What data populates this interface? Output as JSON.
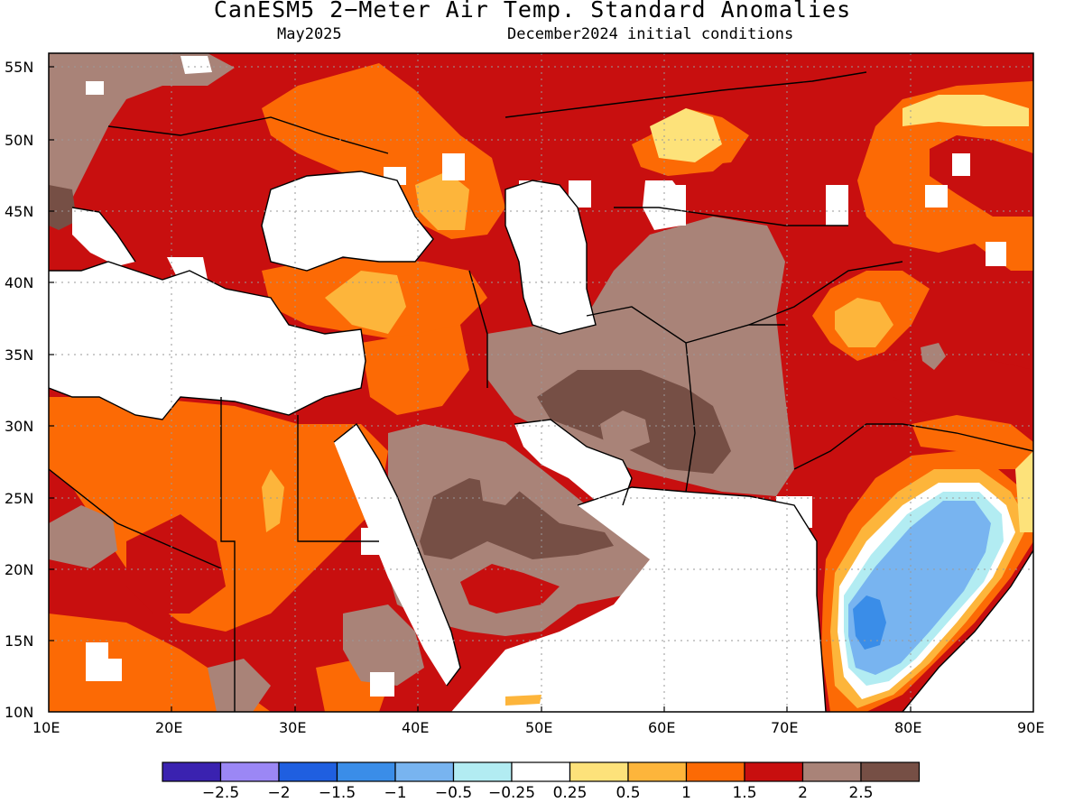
{
  "title": "CanESM5 2−Meter Air Temp. Standard Anomalies",
  "subtitle_left": "May2025",
  "subtitle_right": "December2024 initial conditions",
  "lat_labels": [
    "55N",
    "50N",
    "45N",
    "40N",
    "35N",
    "30N",
    "25N",
    "20N",
    "15N",
    "10N"
  ],
  "lon_labels": [
    "10E",
    "20E",
    "30E",
    "40E",
    "50E",
    "60E",
    "70E",
    "80E",
    "90E"
  ],
  "colorbar": {
    "colors": [
      "#3a22b0",
      "#9b87f5",
      "#1f5fe0",
      "#3a8de8",
      "#78b4f0",
      "#b2ecf2",
      "#ffffff",
      "#fde27a",
      "#fdb53b",
      "#fc6a05",
      "#c80f0f",
      "#a98378",
      "#764f45"
    ],
    "tick_labels": [
      "−2.5",
      "−2",
      "−1.5",
      "−1",
      "−0.5",
      "−0.25",
      "0.25",
      "0.5",
      "1",
      "1.5",
      "2",
      "2.5"
    ]
  },
  "palette": {
    "white": "#ffffff",
    "cyan": "#b2ecf2",
    "lightblue": "#78b4f0",
    "blue": "#3a8de8",
    "yellow": "#fde27a",
    "lightorange": "#fdb53b",
    "orange": "#fc6a05",
    "red": "#c80f0f",
    "brown": "#a98378",
    "darkbrown": "#764f45"
  }
}
